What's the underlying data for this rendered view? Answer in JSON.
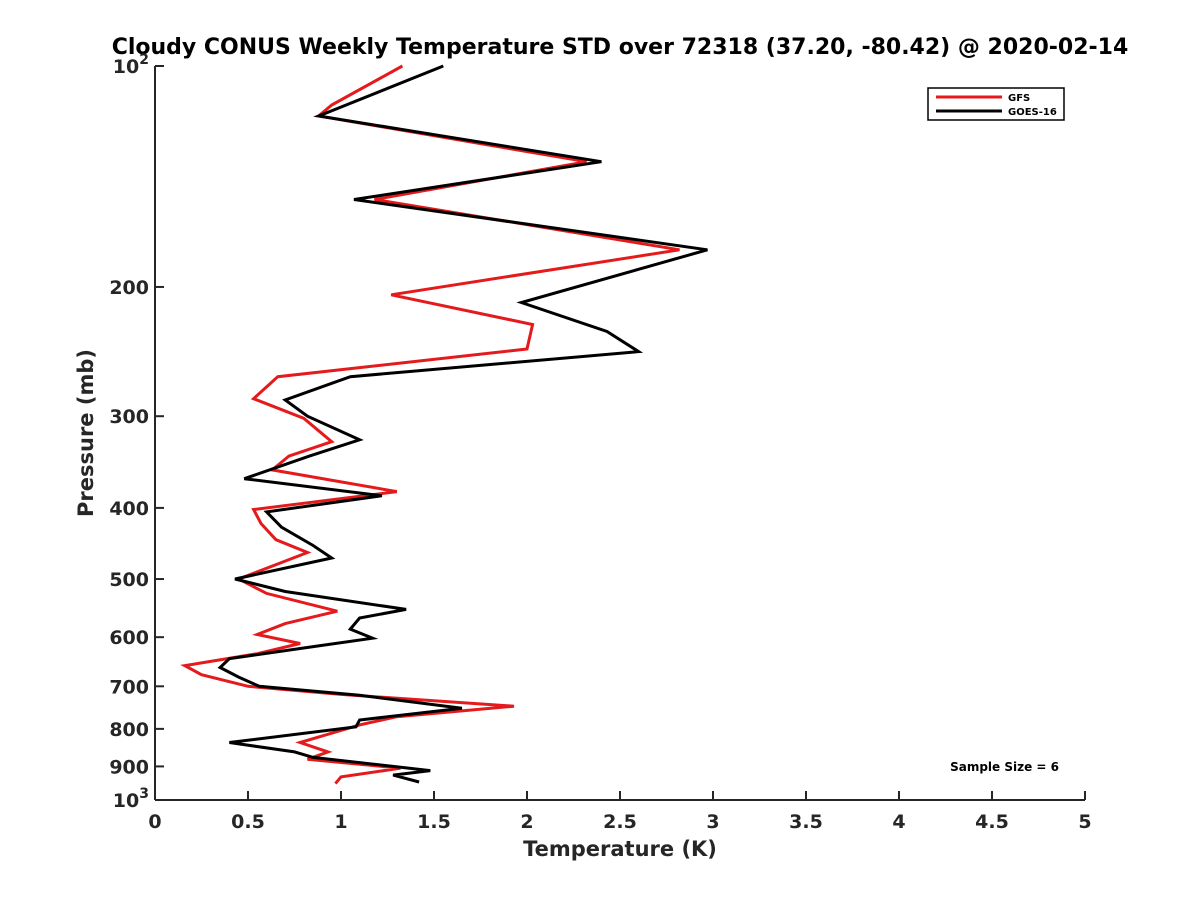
{
  "chart_data": {
    "type": "line",
    "title": "Cloudy CONUS Weekly Temperature STD over 72318 (37.20, -80.42) @ 2020-02-14",
    "xlabel": "Temperature (K)",
    "ylabel": "Pressure (mb)",
    "xlim": [
      0,
      5
    ],
    "ylim": [
      100,
      1000
    ],
    "y_scale": "log",
    "y_reversed": true,
    "grid": false,
    "legend_position": "top-right",
    "x_ticks": [
      "0",
      "0.5",
      "1",
      "1.5",
      "2",
      "2.5",
      "3",
      "3.5",
      "4",
      "4.5",
      "5"
    ],
    "y_ticks": [
      {
        "value": 100,
        "base": "10",
        "exp": "2"
      },
      {
        "value": 200,
        "label": "200"
      },
      {
        "value": 300,
        "label": "300"
      },
      {
        "value": 400,
        "label": "400"
      },
      {
        "value": 500,
        "label": "500"
      },
      {
        "value": 600,
        "label": "600"
      },
      {
        "value": 700,
        "label": "700"
      },
      {
        "value": 800,
        "label": "800"
      },
      {
        "value": 900,
        "label": "900"
      },
      {
        "value": 1000,
        "base": "10",
        "exp": "3"
      }
    ],
    "annotation": "Sample Size = 6",
    "series": [
      {
        "name": "GFS",
        "color": "#e41a1c",
        "points": [
          [
            1.33,
            100
          ],
          [
            0.95,
            113
          ],
          [
            0.88,
            117
          ],
          [
            2.32,
            135
          ],
          [
            1.18,
            152
          ],
          [
            2.82,
            178
          ],
          [
            1.27,
            205
          ],
          [
            2.03,
            225
          ],
          [
            2.0,
            243
          ],
          [
            0.66,
            265
          ],
          [
            0.53,
            284
          ],
          [
            0.8,
            302
          ],
          [
            0.95,
            325
          ],
          [
            0.72,
            340
          ],
          [
            0.63,
            355
          ],
          [
            1.3,
            380
          ],
          [
            0.53,
            402
          ],
          [
            0.57,
            420
          ],
          [
            0.65,
            442
          ],
          [
            0.82,
            460
          ],
          [
            0.45,
            500
          ],
          [
            0.6,
            523
          ],
          [
            0.98,
            553
          ],
          [
            0.7,
            575
          ],
          [
            0.55,
            595
          ],
          [
            0.78,
            612
          ],
          [
            0.55,
            632
          ],
          [
            0.16,
            656
          ],
          [
            0.25,
            675
          ],
          [
            0.5,
            700
          ],
          [
            1.0,
            718
          ],
          [
            1.93,
            745
          ],
          [
            1.3,
            770
          ],
          [
            1.1,
            790
          ],
          [
            0.92,
            815
          ],
          [
            0.78,
            835
          ],
          [
            0.93,
            860
          ],
          [
            0.82,
            880
          ],
          [
            1.32,
            905
          ],
          [
            1.0,
            930
          ],
          [
            0.97,
            950
          ]
        ]
      },
      {
        "name": "GOES-16",
        "color": "#000000",
        "points": [
          [
            1.55,
            100
          ],
          [
            0.88,
            117
          ],
          [
            2.4,
            135
          ],
          [
            1.07,
            152
          ],
          [
            2.97,
            178
          ],
          [
            1.97,
            210
          ],
          [
            2.43,
            230
          ],
          [
            2.6,
            245
          ],
          [
            1.05,
            265
          ],
          [
            0.7,
            285
          ],
          [
            0.82,
            300
          ],
          [
            1.1,
            323
          ],
          [
            0.83,
            340
          ],
          [
            0.48,
            365
          ],
          [
            1.22,
            385
          ],
          [
            0.6,
            405
          ],
          [
            0.68,
            425
          ],
          [
            0.85,
            450
          ],
          [
            0.95,
            468
          ],
          [
            0.43,
            500
          ],
          [
            0.7,
            520
          ],
          [
            1.35,
            550
          ],
          [
            1.1,
            565
          ],
          [
            1.05,
            585
          ],
          [
            1.17,
            602
          ],
          [
            0.87,
            617
          ],
          [
            0.4,
            642
          ],
          [
            0.35,
            660
          ],
          [
            0.45,
            680
          ],
          [
            0.56,
            700
          ],
          [
            1.1,
            720
          ],
          [
            1.65,
            750
          ],
          [
            1.1,
            778
          ],
          [
            1.08,
            795
          ],
          [
            0.4,
            835
          ],
          [
            0.75,
            860
          ],
          [
            0.85,
            875
          ],
          [
            1.48,
            912
          ],
          [
            1.28,
            925
          ],
          [
            1.42,
            945
          ]
        ]
      }
    ]
  }
}
